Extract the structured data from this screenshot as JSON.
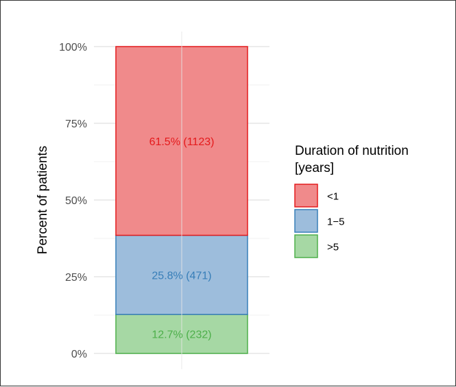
{
  "chart_data": {
    "type": "bar",
    "stacked": true,
    "percent_scale": true,
    "categories": [
      ""
    ],
    "title": "",
    "xlabel": "",
    "ylabel": "Percent of patients",
    "ylim": [
      0,
      100
    ],
    "y_ticks": [
      0,
      25,
      50,
      75,
      100
    ],
    "y_tick_labels": [
      "0%",
      "25%",
      "50%",
      "75%",
      "100%"
    ],
    "grid": true,
    "legend": {
      "title_lines": [
        "Duration of nutrition",
        "[years]"
      ],
      "position": "right"
    },
    "series": [
      {
        "name": "<1",
        "values": [
          61.5
        ],
        "count": 1123,
        "label": "61.5% (1123)",
        "fill": "#F08A8B",
        "stroke": "#E41A1C",
        "text_color": "#E41A1C"
      },
      {
        "name": "1−5",
        "values": [
          25.8
        ],
        "count": 471,
        "label": "25.8% (471)",
        "fill": "#9DBDDC",
        "stroke": "#377EB8",
        "text_color": "#377EB8"
      },
      {
        "name": ">5",
        "values": [
          12.7
        ],
        "count": 232,
        "label": "12.7% (232)",
        "fill": "#A6D8A4",
        "stroke": "#4DAF4A",
        "text_color": "#4DAF4A"
      }
    ],
    "stack_order_bottom_to_top": [
      ">5",
      "1−5",
      "<1"
    ]
  }
}
